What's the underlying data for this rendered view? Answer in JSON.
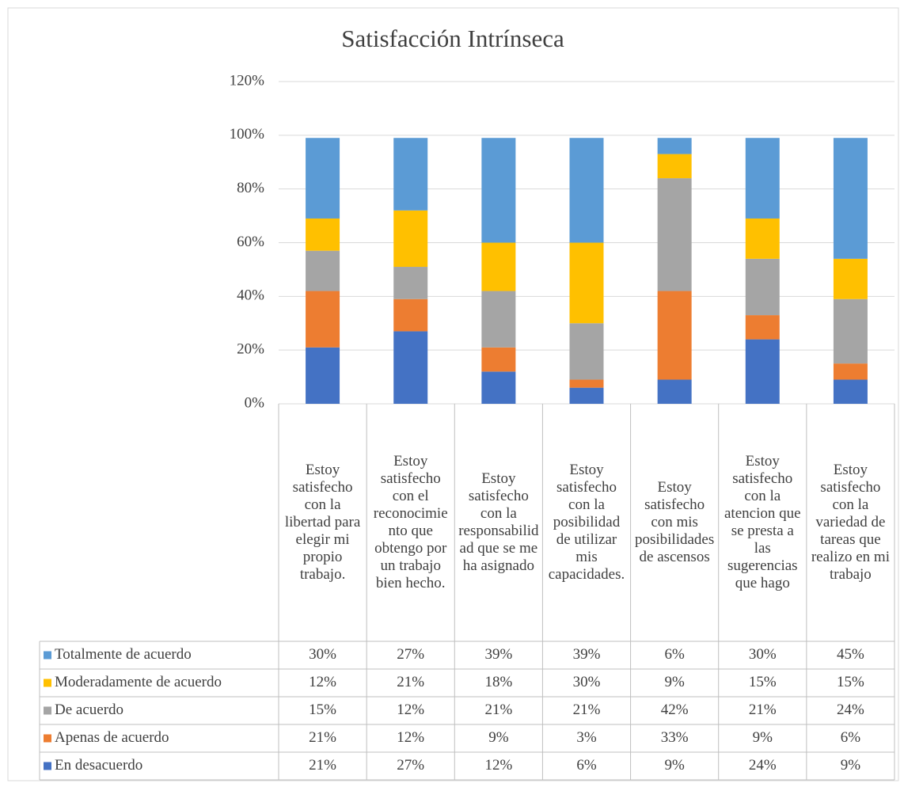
{
  "chart_data": {
    "type": "stacked-bar",
    "title": "Satisfacción Intrínseca",
    "categories": [
      "Estoy satisfecho con la libertad para elegir mi propio trabajo.",
      "Estoy satisfecho con el reconocimiento que obtengo por un trabajo bien hecho.",
      "Estoy satisfecho con la responsabilidad que se me ha asignado",
      "Estoy satisfecho con la posibilidad de utilizar mis capacidades.",
      "Estoy satisfecho con mis posibilidades de ascensos",
      "Estoy satisfecho con la atencion que se presta a las sugerencias que hago",
      "Estoy satisfecho con la variedad de tareas que realizo en mi trabajo"
    ],
    "series": [
      {
        "name": "Totalmente de acuerdo",
        "color": "#5b9bd5",
        "values": [
          30,
          27,
          39,
          39,
          6,
          30,
          45
        ],
        "value_labels": [
          "30%",
          "27%",
          "39%",
          "39%",
          "6%",
          "30%",
          "45%"
        ]
      },
      {
        "name": "Moderadamente de acuerdo",
        "color": "#ffc000",
        "values": [
          12,
          21,
          18,
          30,
          9,
          15,
          15
        ],
        "value_labels": [
          "12%",
          "21%",
          "18%",
          "30%",
          "9%",
          "15%",
          "15%"
        ]
      },
      {
        "name": "De acuerdo",
        "color": "#a5a5a5",
        "values": [
          15,
          12,
          21,
          21,
          42,
          21,
          24
        ],
        "value_labels": [
          "15%",
          "12%",
          "21%",
          "21%",
          "42%",
          "21%",
          "24%"
        ]
      },
      {
        "name": "Apenas de acuerdo",
        "color": "#ed7d31",
        "values": [
          21,
          12,
          9,
          3,
          33,
          9,
          6
        ],
        "value_labels": [
          "21%",
          "12%",
          "9%",
          "3%",
          "33%",
          "9%",
          "6%"
        ]
      },
      {
        "name": "En desacuerdo",
        "color": "#4472c4",
        "values": [
          21,
          27,
          12,
          6,
          9,
          24,
          9
        ],
        "value_labels": [
          "21%",
          "27%",
          "12%",
          "6%",
          "9%",
          "24%",
          "9%"
        ]
      }
    ],
    "ylim": [
      0,
      120
    ],
    "yticks": [
      {
        "value": 0,
        "label": "0%"
      },
      {
        "value": 20,
        "label": "20%"
      },
      {
        "value": 40,
        "label": "40%"
      },
      {
        "value": 60,
        "label": "60%"
      },
      {
        "value": 80,
        "label": "80%"
      },
      {
        "value": 100,
        "label": "100%"
      },
      {
        "value": 120,
        "label": "120%"
      }
    ],
    "grid": true
  }
}
